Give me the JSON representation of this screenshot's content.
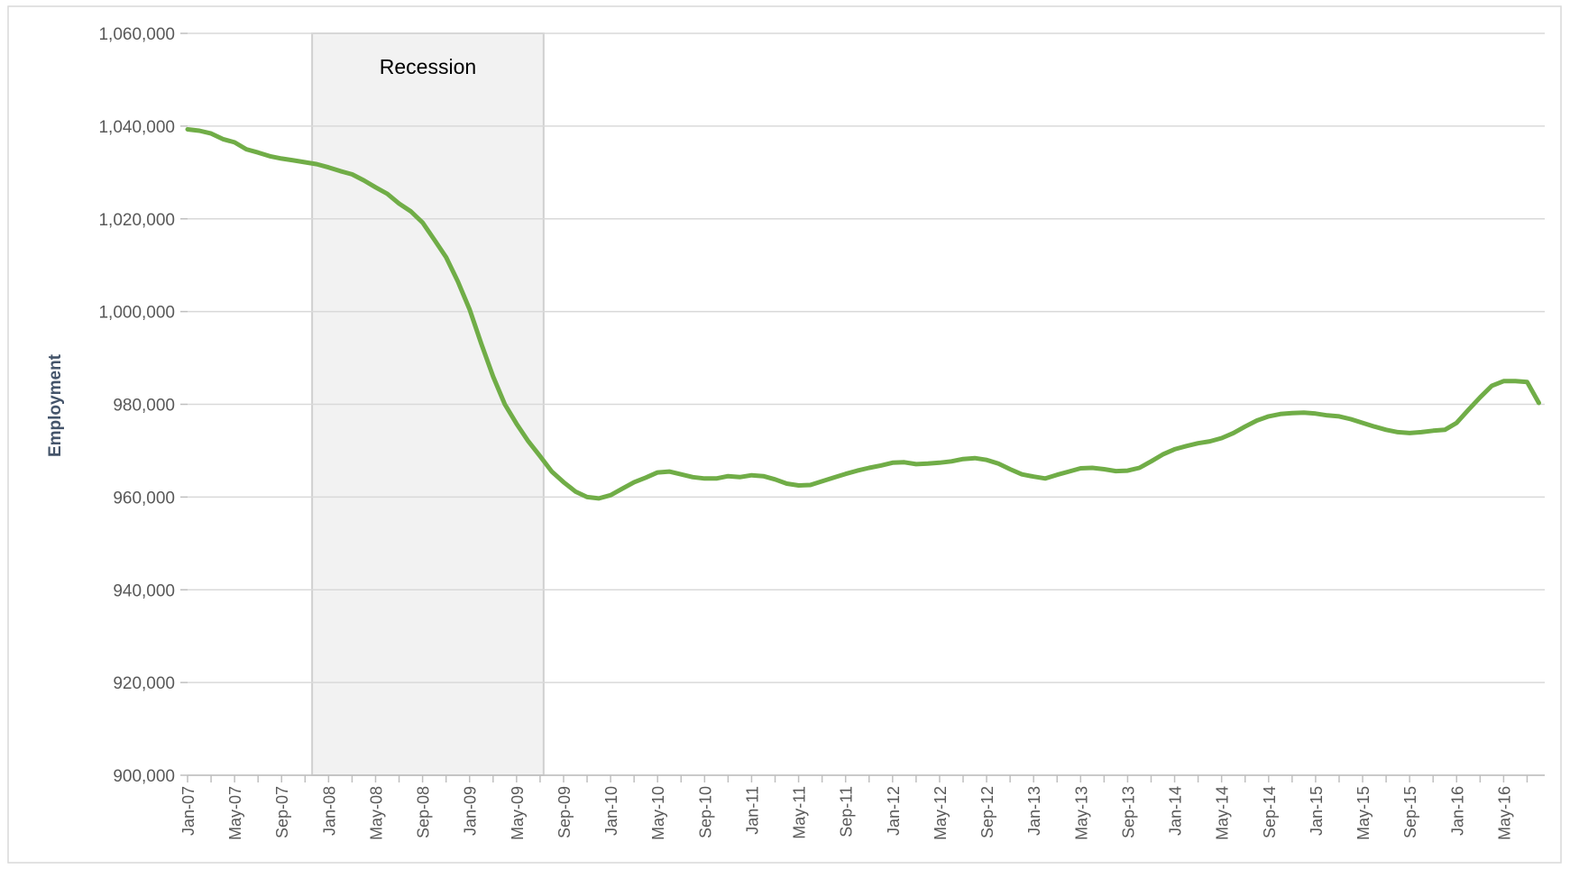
{
  "chart_data": {
    "type": "line",
    "y_label": "Employment",
    "categories": [
      "Jan-07",
      null,
      null,
      null,
      "May-07",
      null,
      null,
      null,
      "Sep-07",
      null,
      null,
      null,
      "Jan-08",
      null,
      null,
      null,
      "May-08",
      null,
      null,
      null,
      "Sep-08",
      null,
      null,
      null,
      "Jan-09",
      null,
      null,
      null,
      "May-09",
      null,
      null,
      null,
      "Sep-09",
      null,
      null,
      null,
      "Jan-10",
      null,
      null,
      null,
      "May-10",
      null,
      null,
      null,
      "Sep-10",
      null,
      null,
      null,
      "Jan-11",
      null,
      null,
      null,
      "May-11",
      null,
      null,
      null,
      "Sep-11",
      null,
      null,
      null,
      "Jan-12",
      null,
      null,
      null,
      "May-12",
      null,
      null,
      null,
      "Sep-12",
      null,
      null,
      null,
      "Jan-13",
      null,
      null,
      null,
      "May-13",
      null,
      null,
      null,
      "Sep-13",
      null,
      null,
      null,
      "Jan-14",
      null,
      null,
      null,
      "May-14",
      null,
      null,
      null,
      "Sep-14",
      null,
      null,
      null,
      "Jan-15",
      null,
      null,
      null,
      "May-15",
      null,
      null,
      null,
      "Sep-15",
      null,
      null,
      null,
      "Jan-16",
      null,
      null,
      null,
      "May-16",
      null,
      null,
      null
    ],
    "values": [
      1039300,
      1039000,
      1038400,
      1037200,
      1036500,
      1035000,
      1034300,
      1033500,
      1033000,
      1032600,
      1032200,
      1031800,
      1031100,
      1030300,
      1029600,
      1028300,
      1026800,
      1025400,
      1023300,
      1021600,
      1019200,
      1015500,
      1011700,
      1006500,
      1000500,
      993000,
      986000,
      980000,
      975800,
      972000,
      968800,
      965500,
      963200,
      961200,
      960000,
      959700,
      960400,
      961800,
      963200,
      964200,
      965300,
      965500,
      964900,
      964300,
      964000,
      964000,
      964500,
      964300,
      964700,
      964500,
      963800,
      962900,
      962500,
      962600,
      963400,
      964200,
      965000,
      965700,
      966300,
      966800,
      967400,
      967500,
      967100,
      967200,
      967400,
      967700,
      968200,
      968400,
      968000,
      967200,
      966000,
      964900,
      964400,
      964000,
      964800,
      965500,
      966200,
      966300,
      966000,
      965600,
      965700,
      966300,
      967700,
      969200,
      970300,
      971000,
      971600,
      972000,
      972700,
      973800,
      975200,
      976500,
      977400,
      977900,
      978100,
      978200,
      978000,
      977600,
      977400,
      976800,
      976000,
      975200,
      974500,
      974000,
      973800,
      974000,
      974300,
      974500,
      976000,
      978800,
      981500,
      984000,
      985000,
      985000,
      984800,
      980300
    ],
    "color": "#70ad47",
    "ylim": [
      900000,
      1060000
    ],
    "yticks": [
      {
        "value": 900000,
        "label": "900,000"
      },
      {
        "value": 920000,
        "label": "920,000"
      },
      {
        "value": 940000,
        "label": "940,000"
      },
      {
        "value": 960000,
        "label": "960,000"
      },
      {
        "value": 980000,
        "label": "980,000"
      },
      {
        "value": 1000000,
        "label": "1,000,000"
      },
      {
        "value": 1020000,
        "label": "1,020,000"
      },
      {
        "value": 1040000,
        "label": "1,040,000"
      },
      {
        "value": 1060000,
        "label": "1,060,000"
      }
    ],
    "grid": true,
    "annotations": [
      {
        "text": "Recession",
        "x_start": 10.6,
        "x_end": 30.3
      }
    ]
  }
}
